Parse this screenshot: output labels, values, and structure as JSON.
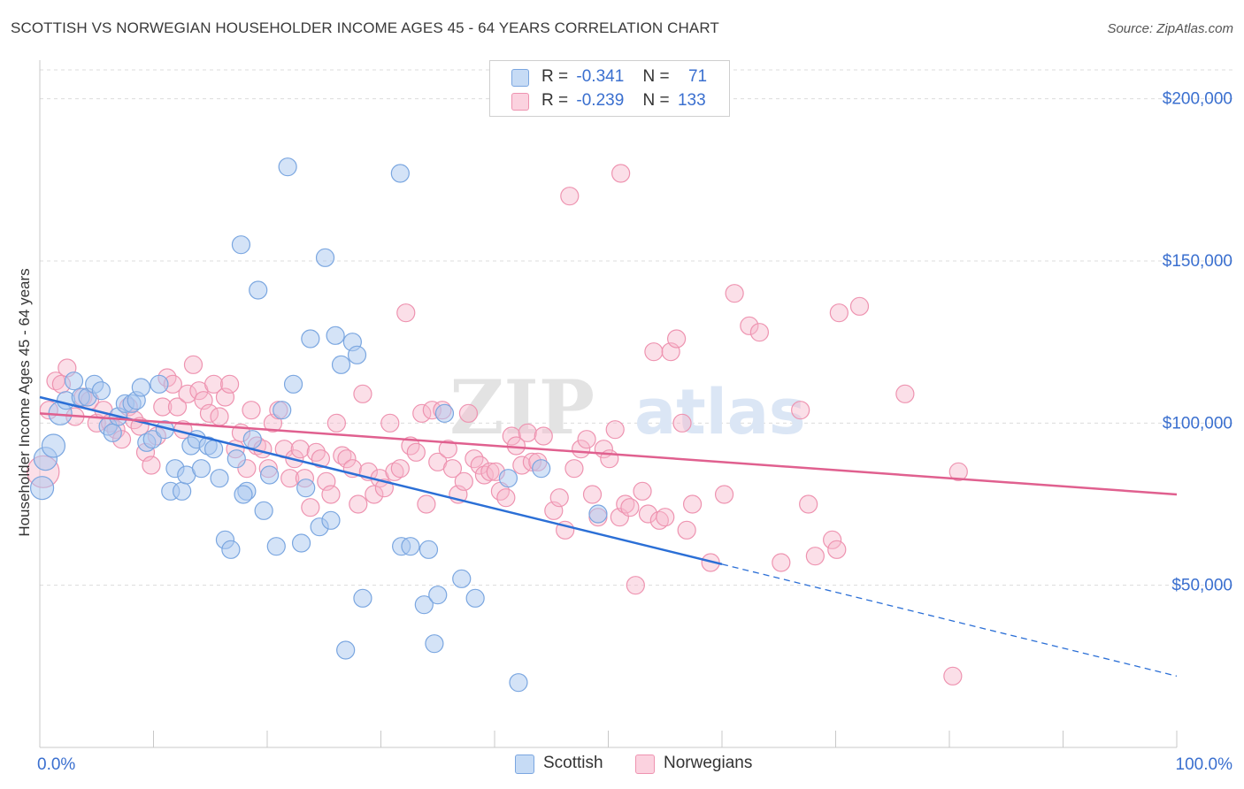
{
  "title": "SCOTTISH VS NORWEGIAN HOUSEHOLDER INCOME AGES 45 - 64 YEARS CORRELATION CHART",
  "source": "Source: ZipAtlas.com",
  "watermark": {
    "zip": "ZIP",
    "atlas": "atlas"
  },
  "legend": {
    "rows": [
      {
        "r_label": "R =",
        "r_value": "-0.341",
        "n_label": "N =",
        "n_value": "71"
      },
      {
        "r_label": "R =",
        "r_value": "-0.239",
        "n_label": "N =",
        "n_value": "133"
      }
    ]
  },
  "bottom_legend": {
    "scottish": "Scottish",
    "norwegians": "Norwegians"
  },
  "colors": {
    "scottish_fill": "#a9c8f0",
    "scottish_stroke": "#7aa6e0",
    "scottish_line": "#2b6fd6",
    "norwegian_fill": "#f7b8cb",
    "norwegian_stroke": "#ee93b0",
    "norwegian_line": "#e0608f",
    "tick_label": "#3a6fcf",
    "grid": "#dcdcdc"
  },
  "chart_data": {
    "type": "scatter",
    "title": "SCOTTISH VS NORWEGIAN HOUSEHOLDER INCOME AGES 45 - 64 YEARS CORRELATION CHART",
    "xlabel": "",
    "ylabel": "Householder Income Ages 45 - 64 years",
    "xlim": [
      0,
      100
    ],
    "ylim": [
      0,
      210000
    ],
    "x_tick_labels": [
      "0.0%",
      "100.0%"
    ],
    "y_ticks": [
      50000,
      100000,
      150000,
      200000
    ],
    "y_tick_labels": [
      "$50,000",
      "$100,000",
      "$150,000",
      "$200,000"
    ],
    "grid": true,
    "legend_position": "top-center",
    "series": [
      {
        "name": "Scottish",
        "r": -0.341,
        "n": 71,
        "trend": {
          "x0": 0,
          "y0": 108000,
          "x1": 60,
          "y1": 56500,
          "dash_to_x": 100,
          "dash_to_y": 22000
        },
        "points": [
          [
            0.2,
            80000
          ],
          [
            0.5,
            89000
          ],
          [
            1.2,
            93000
          ],
          [
            1.8,
            103000
          ],
          [
            2.3,
            107000
          ],
          [
            3.0,
            113000
          ],
          [
            3.6,
            108000
          ],
          [
            4.2,
            108000
          ],
          [
            4.8,
            112000
          ],
          [
            5.4,
            110000
          ],
          [
            6.0,
            99000
          ],
          [
            6.4,
            97000
          ],
          [
            6.9,
            102000
          ],
          [
            7.5,
            106000
          ],
          [
            8.1,
            106000
          ],
          [
            8.5,
            107000
          ],
          [
            8.9,
            111000
          ],
          [
            9.4,
            94000
          ],
          [
            9.9,
            95000
          ],
          [
            10.5,
            112000
          ],
          [
            11.0,
            98000
          ],
          [
            11.5,
            79000
          ],
          [
            11.9,
            86000
          ],
          [
            12.5,
            79000
          ],
          [
            12.9,
            84000
          ],
          [
            13.3,
            93000
          ],
          [
            13.8,
            95000
          ],
          [
            14.2,
            86000
          ],
          [
            14.8,
            93000
          ],
          [
            15.3,
            92000
          ],
          [
            15.8,
            83000
          ],
          [
            16.3,
            64000
          ],
          [
            16.8,
            61000
          ],
          [
            17.3,
            89000
          ],
          [
            17.7,
            155000
          ],
          [
            18.2,
            79000
          ],
          [
            18.7,
            95000
          ],
          [
            19.2,
            141000
          ],
          [
            19.7,
            73000
          ],
          [
            20.2,
            84000
          ],
          [
            20.8,
            62000
          ],
          [
            21.3,
            104000
          ],
          [
            21.8,
            179000
          ],
          [
            22.3,
            112000
          ],
          [
            23.0,
            63000
          ],
          [
            23.4,
            80000
          ],
          [
            23.8,
            126000
          ],
          [
            24.6,
            68000
          ],
          [
            25.1,
            151000
          ],
          [
            25.6,
            70000
          ],
          [
            26.0,
            127000
          ],
          [
            26.5,
            118000
          ],
          [
            26.9,
            30000
          ],
          [
            27.5,
            125000
          ],
          [
            27.9,
            121000
          ],
          [
            28.4,
            46000
          ],
          [
            31.7,
            177000
          ],
          [
            31.8,
            62000
          ],
          [
            32.6,
            62000
          ],
          [
            33.8,
            44000
          ],
          [
            34.2,
            61000
          ],
          [
            34.7,
            32000
          ],
          [
            35.0,
            47000
          ],
          [
            35.6,
            103000
          ],
          [
            37.1,
            52000
          ],
          [
            38.3,
            46000
          ],
          [
            41.2,
            83000
          ],
          [
            42.1,
            20000
          ],
          [
            44.1,
            86000
          ],
          [
            49.1,
            72000
          ],
          [
            17.9,
            78000
          ]
        ]
      },
      {
        "name": "Norwegians",
        "r": -0.239,
        "n": 133,
        "trend": {
          "x0": 0,
          "y0": 103000,
          "x1": 100,
          "y1": 78000
        },
        "points": [
          [
            0.3,
            85000
          ],
          [
            0.8,
            104000
          ],
          [
            1.4,
            113000
          ],
          [
            1.9,
            112000
          ],
          [
            2.4,
            117000
          ],
          [
            3.1,
            102000
          ],
          [
            3.8,
            108000
          ],
          [
            4.4,
            107000
          ],
          [
            5.0,
            100000
          ],
          [
            5.6,
            104000
          ],
          [
            6.2,
            100000
          ],
          [
            6.7,
            98000
          ],
          [
            7.2,
            95000
          ],
          [
            7.8,
            105000
          ],
          [
            8.3,
            101000
          ],
          [
            8.8,
            99000
          ],
          [
            9.3,
            91000
          ],
          [
            9.8,
            87000
          ],
          [
            10.3,
            96000
          ],
          [
            10.8,
            105000
          ],
          [
            11.2,
            114000
          ],
          [
            11.7,
            112000
          ],
          [
            12.1,
            105000
          ],
          [
            12.6,
            98000
          ],
          [
            13.0,
            109000
          ],
          [
            13.5,
            118000
          ],
          [
            14.0,
            110000
          ],
          [
            14.4,
            107000
          ],
          [
            14.9,
            103000
          ],
          [
            15.3,
            112000
          ],
          [
            15.8,
            102000
          ],
          [
            16.3,
            108000
          ],
          [
            16.7,
            112000
          ],
          [
            17.2,
            92000
          ],
          [
            17.7,
            97000
          ],
          [
            18.2,
            86000
          ],
          [
            18.6,
            104000
          ],
          [
            19.1,
            93000
          ],
          [
            19.6,
            92000
          ],
          [
            20.1,
            86000
          ],
          [
            20.5,
            100000
          ],
          [
            21.0,
            104000
          ],
          [
            21.5,
            92000
          ],
          [
            22.0,
            83000
          ],
          [
            22.4,
            89000
          ],
          [
            22.9,
            92000
          ],
          [
            23.3,
            83000
          ],
          [
            23.8,
            74000
          ],
          [
            24.3,
            91000
          ],
          [
            24.7,
            89000
          ],
          [
            25.2,
            82000
          ],
          [
            25.6,
            78000
          ],
          [
            26.1,
            100000
          ],
          [
            26.6,
            90000
          ],
          [
            27.0,
            89000
          ],
          [
            27.5,
            86000
          ],
          [
            28.0,
            75000
          ],
          [
            28.4,
            109000
          ],
          [
            28.9,
            85000
          ],
          [
            29.4,
            78000
          ],
          [
            29.9,
            83000
          ],
          [
            30.3,
            80000
          ],
          [
            30.8,
            100000
          ],
          [
            31.2,
            85000
          ],
          [
            31.7,
            86000
          ],
          [
            32.2,
            134000
          ],
          [
            32.6,
            93000
          ],
          [
            33.1,
            91000
          ],
          [
            33.6,
            103000
          ],
          [
            34.0,
            75000
          ],
          [
            34.5,
            104000
          ],
          [
            35.0,
            88000
          ],
          [
            35.4,
            104000
          ],
          [
            35.9,
            92000
          ],
          [
            36.3,
            86000
          ],
          [
            36.8,
            78000
          ],
          [
            37.3,
            82000
          ],
          [
            37.7,
            103000
          ],
          [
            38.2,
            89000
          ],
          [
            38.7,
            87000
          ],
          [
            39.1,
            84000
          ],
          [
            39.6,
            85000
          ],
          [
            40.1,
            85000
          ],
          [
            40.5,
            79000
          ],
          [
            41.0,
            77000
          ],
          [
            41.5,
            96000
          ],
          [
            41.9,
            93000
          ],
          [
            42.4,
            87000
          ],
          [
            42.9,
            97000
          ],
          [
            43.3,
            88000
          ],
          [
            43.8,
            88000
          ],
          [
            44.3,
            96000
          ],
          [
            45.2,
            73000
          ],
          [
            45.7,
            77000
          ],
          [
            46.2,
            67000
          ],
          [
            47.0,
            86000
          ],
          [
            47.6,
            92000
          ],
          [
            48.1,
            95000
          ],
          [
            48.6,
            78000
          ],
          [
            49.1,
            71000
          ],
          [
            49.6,
            92000
          ],
          [
            50.1,
            89000
          ],
          [
            50.6,
            98000
          ],
          [
            51.0,
            71000
          ],
          [
            51.5,
            75000
          ],
          [
            51.9,
            74000
          ],
          [
            52.4,
            50000
          ],
          [
            53.0,
            79000
          ],
          [
            53.5,
            72000
          ],
          [
            54.0,
            122000
          ],
          [
            54.5,
            70000
          ],
          [
            55.0,
            71000
          ],
          [
            55.5,
            122000
          ],
          [
            56.0,
            126000
          ],
          [
            56.5,
            100000
          ],
          [
            56.9,
            67000
          ],
          [
            57.4,
            75000
          ],
          [
            59.0,
            57000
          ],
          [
            60.2,
            78000
          ],
          [
            61.1,
            140000
          ],
          [
            62.4,
            130000
          ],
          [
            63.3,
            128000
          ],
          [
            65.2,
            57000
          ],
          [
            66.9,
            104000
          ],
          [
            67.6,
            75000
          ],
          [
            68.2,
            59000
          ],
          [
            69.7,
            64000
          ],
          [
            70.1,
            61000
          ],
          [
            70.3,
            134000
          ],
          [
            72.1,
            136000
          ],
          [
            76.1,
            109000
          ],
          [
            80.3,
            22000
          ],
          [
            80.8,
            85000
          ],
          [
            46.6,
            170000
          ],
          [
            51.1,
            177000
          ]
        ]
      }
    ]
  }
}
